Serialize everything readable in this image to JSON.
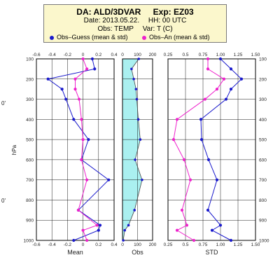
{
  "header": {
    "title_prefix": "DA:",
    "da": "ALD/3DVAR",
    "exp_prefix": "Exp:",
    "exp": "EZ03",
    "date_prefix": "Date:",
    "date": "2013.05.22.",
    "hh_prefix": "HH:",
    "hh": "00 UTC",
    "obs_prefix": "Obs:",
    "obs": "TEMP",
    "var_prefix": "Var:",
    "var": "T (C)"
  },
  "legend": [
    {
      "name": "Obs–Guess (mean & std)",
      "color": "#1a1acc"
    },
    {
      "name": "Obs–An (mean & std)",
      "color": "#ee22cc"
    }
  ],
  "side_labels": [
    "0'",
    "0'"
  ],
  "chart_data": {
    "type": "line",
    "shared_y": {
      "label": "hPa",
      "range": [
        100,
        1000
      ],
      "ticks": [
        100,
        200,
        300,
        400,
        500,
        600,
        700,
        800,
        900,
        1000
      ],
      "inverted": true,
      "grid": true
    },
    "panels": [
      {
        "id": "mean",
        "xlabel": "Mean",
        "xlim": [
          -0.6,
          0.4
        ],
        "xticks": [
          "-0.6",
          "-0.4",
          "-0.2",
          "0",
          "0.2",
          "0.4"
        ],
        "grid": true,
        "series": [
          {
            "name": "Obs–Guess",
            "y": [
              100,
              150,
              200,
              250,
              300,
              400,
              500,
              600,
              700,
              850,
              925,
              950,
              1000
            ],
            "values": [
              0.12,
              0.15,
              -0.45,
              -0.27,
              -0.22,
              -0.12,
              0.07,
              -0.02,
              0.33,
              -0.06,
              0.22,
              0.2,
              -0.12
            ]
          },
          {
            "name": "Obs–An",
            "y": [
              100,
              150,
              200,
              250,
              300,
              400,
              500,
              600,
              700,
              850,
              925,
              950,
              1000
            ],
            "values": [
              0.0,
              0.05,
              -0.1,
              -0.1,
              -0.05,
              -0.02,
              0.0,
              -0.02,
              0.05,
              -0.06,
              0.18,
              0.0,
              0.05
            ]
          }
        ]
      },
      {
        "id": "obs",
        "xlabel": "Obs",
        "xlim": [
          0,
          200
        ],
        "xticks": [
          "0",
          "100",
          "200"
        ],
        "grid": true,
        "series": [
          {
            "name": "Obs count",
            "y": [
              100,
              150,
              200,
              250,
              300,
              400,
              500,
              600,
              700,
              850,
              925,
              950,
              1000
            ],
            "values": [
              108,
              60,
              75,
              90,
              95,
              105,
              118,
              84,
              130,
              80,
              40,
              15,
              5
            ]
          }
        ]
      },
      {
        "id": "std",
        "xlabel": "STD",
        "xlim": [
          0.25,
          1.5
        ],
        "xticks": [
          "0.25",
          "0.5",
          "0.75",
          "1.00",
          "1.25",
          "1.50"
        ],
        "grid": true,
        "series": [
          {
            "name": "Obs–Guess",
            "y": [
              100,
              150,
              200,
              250,
              300,
              400,
              500,
              600,
              700,
              850,
              925,
              950,
              1000
            ],
            "values": [
              1.0,
              1.15,
              1.3,
              1.15,
              1.08,
              0.72,
              0.73,
              0.83,
              0.95,
              0.82,
              1.0,
              0.88,
              1.15
            ]
          },
          {
            "name": "Obs–An",
            "y": [
              100,
              150,
              200,
              250,
              300,
              400,
              500,
              600,
              700,
              850,
              925,
              950,
              1000
            ],
            "values": [
              0.82,
              0.82,
              1.05,
              0.95,
              0.78,
              0.38,
              0.33,
              0.48,
              0.57,
              0.45,
              0.52,
              0.38,
              0.62
            ]
          }
        ]
      }
    ]
  }
}
